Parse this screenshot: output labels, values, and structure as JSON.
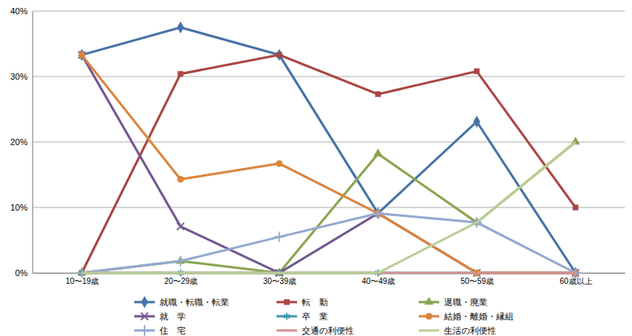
{
  "chart_data": {
    "type": "line",
    "categories": [
      "10〜19歳",
      "20〜29歳",
      "30〜39歳",
      "40〜49歳",
      "50〜59歳",
      "60歳以上"
    ],
    "ylim": [
      0,
      40
    ],
    "yticks": [
      {
        "value": 0,
        "label": "0%"
      },
      {
        "value": 10,
        "label": "10%"
      },
      {
        "value": 20,
        "label": "20%"
      },
      {
        "value": 30,
        "label": "30%"
      },
      {
        "value": 40,
        "label": "40%"
      }
    ],
    "grid": true,
    "legend": "bottom",
    "series": [
      {
        "name": "就職・転職・転業",
        "color": "#4572a7",
        "marker": "diamond",
        "values": [
          33.3,
          37.5,
          33.3,
          9.1,
          23.1,
          0
        ]
      },
      {
        "name": "転　勤",
        "color": "#aa4643",
        "marker": "square",
        "values": [
          0,
          30.4,
          33.3,
          27.3,
          30.8,
          10
        ]
      },
      {
        "name": "退職・廃業",
        "color": "#89a54e",
        "marker": "triangle",
        "values": [
          0,
          1.8,
          0,
          18.2,
          7.7,
          20
        ]
      },
      {
        "name": "就　学",
        "color": "#71588f",
        "marker": "x",
        "values": [
          33.3,
          7.1,
          0,
          9.1,
          0,
          0
        ]
      },
      {
        "name": "卒　業",
        "color": "#4198af",
        "marker": "star",
        "values": [
          0,
          0,
          0,
          0,
          0,
          0
        ]
      },
      {
        "name": "結婚・離婚・縁組",
        "color": "#db843d",
        "marker": "circle",
        "values": [
          33.3,
          14.3,
          16.7,
          9.1,
          0,
          0
        ]
      },
      {
        "name": "住　宅",
        "color": "#93a9cf",
        "marker": "plus",
        "values": [
          0,
          1.8,
          5.5,
          9.1,
          7.7,
          0
        ]
      },
      {
        "name": "交通の利便性",
        "color": "#d19392",
        "marker": "none",
        "values": [
          0,
          0,
          0,
          0,
          0,
          0
        ]
      },
      {
        "name": "生活の利便性",
        "color": "#b9cd96",
        "marker": "none",
        "values": [
          0,
          0,
          0,
          0,
          7.7,
          20
        ]
      }
    ]
  }
}
